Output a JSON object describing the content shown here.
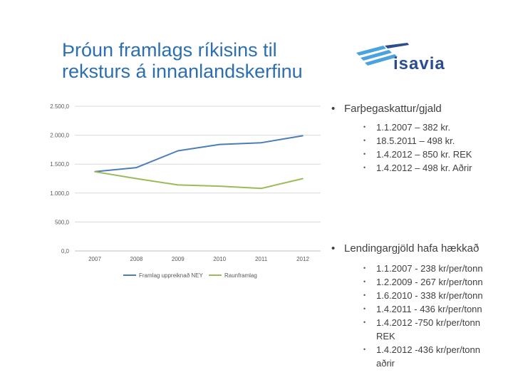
{
  "title": {
    "line1": "Þróun framlags ríkisins til",
    "line2": "reksturs á innanlandskerfinu"
  },
  "logo": {
    "text": "isavia",
    "color": "#2a4d8f",
    "accent": "#4aa3df"
  },
  "chart_data": {
    "type": "line",
    "x": [
      "2007",
      "2008",
      "2009",
      "2010",
      "2011",
      "2012"
    ],
    "series": [
      {
        "name": "Framlag uppreiknað NEY",
        "color": "#4a7ebb",
        "values": [
          1370,
          1440,
          1730,
          1840,
          1870,
          1990
        ]
      },
      {
        "name": "Raunframlag",
        "color": "#9bbb59",
        "values": [
          1370,
          1250,
          1140,
          1120,
          1080,
          1250
        ]
      }
    ],
    "yticks": [
      "2.500,0",
      "2.000,0",
      "1.500,0",
      "1.000,0",
      "500,0",
      "0,0"
    ],
    "ylim": [
      0,
      2500
    ],
    "grid": true,
    "legend": "bottom"
  },
  "list1": {
    "heading": "Farþegaskattur/gjald",
    "items": [
      "1.1.2007 – 382 kr.",
      "18.5.2011 – 498 kr.",
      "1.4.2012 – 850 kr. REK",
      "1.4.2012 – 498 kr. Aðrir"
    ]
  },
  "list2": {
    "heading": "Lendingargjöld hafa hækkað",
    "items": [
      "1.1.2007 - 238 kr/per/tonn",
      "1.2.2009 - 267 kr/per/tonn",
      "1.6.2010 - 338 kr/per/tonn",
      "1.4.2011 - 436 kr/per/tonn",
      "1.4.2012 -750 kr/per/tonn REK",
      "1.4.2012 -436 kr/per/tonn aðrir"
    ]
  }
}
